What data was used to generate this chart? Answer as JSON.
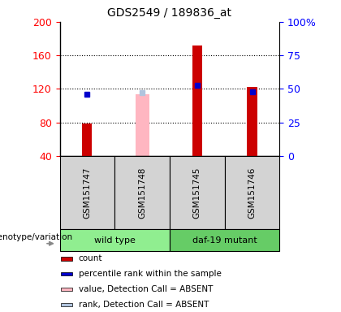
{
  "title": "GDS2549 / 189836_at",
  "samples": [
    "GSM151747",
    "GSM151748",
    "GSM151745",
    "GSM151746"
  ],
  "ylim_left": [
    40,
    200
  ],
  "ylim_right": [
    0,
    100
  ],
  "yticks_left": [
    40,
    80,
    120,
    160,
    200
  ],
  "yticks_right": [
    0,
    25,
    50,
    75,
    100
  ],
  "count_values": [
    79,
    null,
    172,
    122
  ],
  "count_color": "#cc0000",
  "percentile_values": [
    114,
    null,
    124,
    117
  ],
  "percentile_color": "#0000cc",
  "absent_value_values": [
    null,
    114,
    null,
    null
  ],
  "absent_value_color": "#ffb6c1",
  "absent_rank_values": [
    null,
    116,
    null,
    null
  ],
  "absent_rank_color": "#b0c4de",
  "count_bar_width": 0.18,
  "absent_bar_width": 0.25,
  "sample_area_color": "#d3d3d3",
  "group_info": [
    {
      "name": "wild type",
      "start": 0,
      "end": 2,
      "color": "#90EE90"
    },
    {
      "name": "daf-19 mutant",
      "start": 2,
      "end": 4,
      "color": "#66CC66"
    }
  ],
  "legend_items": [
    {
      "label": "count",
      "color": "#cc0000"
    },
    {
      "label": "percentile rank within the sample",
      "color": "#0000cc"
    },
    {
      "label": "value, Detection Call = ABSENT",
      "color": "#ffb6c1"
    },
    {
      "label": "rank, Detection Call = ABSENT",
      "color": "#b0c4de"
    }
  ],
  "genotype_label": "genotype/variation",
  "arrow_color": "#888888",
  "grid_lines": [
    80,
    120,
    160
  ],
  "title_fontsize": 10,
  "tick_fontsize": 9,
  "label_fontsize": 8
}
